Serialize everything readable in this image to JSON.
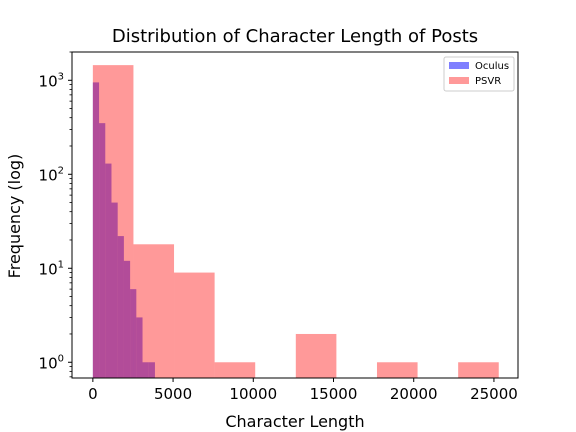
{
  "chart_data": {
    "type": "bar",
    "title": "Distribution of Character Length of Posts",
    "xlabel": "Character Length",
    "ylabel": "Frequency (log)",
    "xlim": [
      -1300,
      26500
    ],
    "ylim": [
      0.68,
      2000
    ],
    "yscale": "log",
    "legend_position": "top-right",
    "x_ticks": [
      {
        "value": 0,
        "label": "0"
      },
      {
        "value": 5000,
        "label": "5000"
      },
      {
        "value": 10000,
        "label": "10000"
      },
      {
        "value": 15000,
        "label": "15000"
      },
      {
        "value": 20000,
        "label": "20000"
      },
      {
        "value": 25000,
        "label": "25000"
      }
    ],
    "y_ticks": [
      {
        "value": 1,
        "base": "10",
        "exp": "0"
      },
      {
        "value": 10,
        "base": "10",
        "exp": "1"
      },
      {
        "value": 100,
        "base": "10",
        "exp": "2"
      },
      {
        "value": 1000,
        "base": "10",
        "exp": "3"
      }
    ],
    "series": [
      {
        "name": "Oculus",
        "color": "#0000ff",
        "opacity": 0.5,
        "bins": [
          {
            "x0": 0,
            "x1": 387,
            "count": 950
          },
          {
            "x0": 387,
            "x1": 774,
            "count": 350
          },
          {
            "x0": 774,
            "x1": 1161,
            "count": 130
          },
          {
            "x0": 1161,
            "x1": 1548,
            "count": 50
          },
          {
            "x0": 1548,
            "x1": 1935,
            "count": 22
          },
          {
            "x0": 1935,
            "x1": 2322,
            "count": 12
          },
          {
            "x0": 2322,
            "x1": 2709,
            "count": 6
          },
          {
            "x0": 2709,
            "x1": 3096,
            "count": 3
          },
          {
            "x0": 3096,
            "x1": 3483,
            "count": 1
          },
          {
            "x0": 3483,
            "x1": 3870,
            "count": 1
          }
        ]
      },
      {
        "name": "PSVR",
        "color": "#ff0000",
        "opacity": 0.4,
        "bins": [
          {
            "x0": 0,
            "x1": 2530,
            "count": 1450
          },
          {
            "x0": 2530,
            "x1": 5060,
            "count": 18
          },
          {
            "x0": 5060,
            "x1": 7590,
            "count": 9
          },
          {
            "x0": 7590,
            "x1": 10120,
            "count": 1
          },
          {
            "x0": 10120,
            "x1": 12650,
            "count": 0
          },
          {
            "x0": 12650,
            "x1": 15180,
            "count": 2
          },
          {
            "x0": 15180,
            "x1": 17710,
            "count": 0
          },
          {
            "x0": 17710,
            "x1": 20240,
            "count": 1
          },
          {
            "x0": 20240,
            "x1": 22770,
            "count": 0
          },
          {
            "x0": 22770,
            "x1": 25300,
            "count": 1
          }
        ]
      }
    ]
  }
}
